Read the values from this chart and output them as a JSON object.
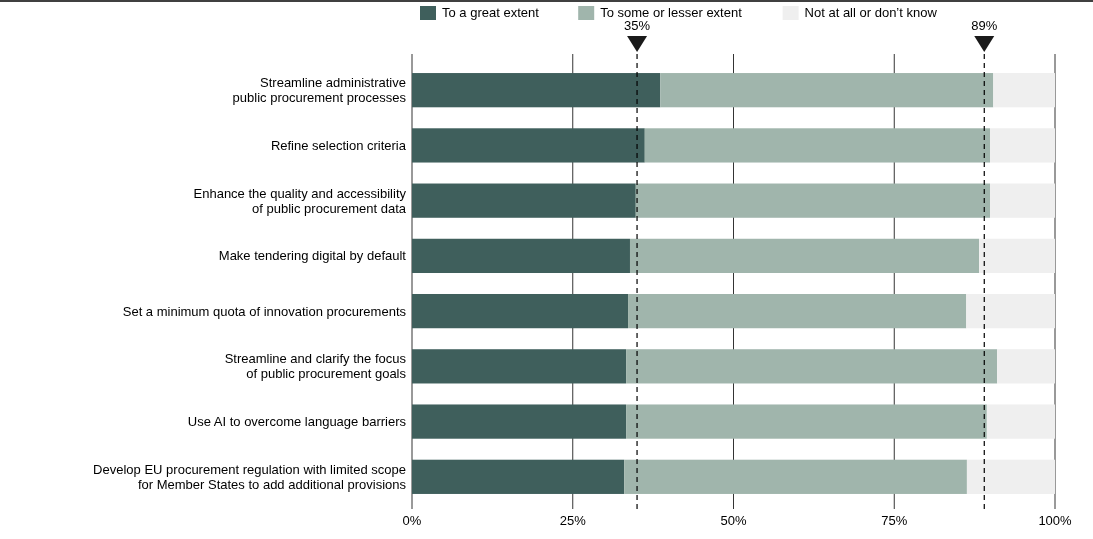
{
  "chart_data": {
    "type": "bar",
    "orientation": "horizontal",
    "stacked": true,
    "categories": [
      "Streamline administrative\npublic procurement processes",
      "Refine selection criteria",
      "Enhance the quality and accessibility\nof public procurement data",
      "Make tendering digital by default",
      "Set a minimum quota of innovation procurements",
      "Streamline and clarify the focus\nof public procurement goals",
      "Use AI to overcome language barriers",
      "Develop EU procurement regulation with limited scope\nfor Member States to add additional provisions"
    ],
    "series": [
      {
        "name": "To a great extent",
        "color": "#3f5f5c",
        "values": [
          38.6,
          36.2,
          34.8,
          33.9,
          33.6,
          33.3,
          33.3,
          33.0
        ]
      },
      {
        "name": "To some or lesser extent",
        "color": "#a0b5ac",
        "values": [
          51.8,
          53.7,
          55.1,
          54.3,
          52.6,
          57.7,
          56.1,
          53.3
        ]
      },
      {
        "name": "Not at all or don’t know",
        "color": "#efefef",
        "values": [
          9.6,
          10.1,
          10.1,
          11.8,
          13.8,
          9.0,
          10.6,
          13.7
        ]
      }
    ],
    "xlim": [
      0,
      100
    ],
    "xticks": [
      {
        "value": 0,
        "label": "0%"
      },
      {
        "value": 25,
        "label": "25%"
      },
      {
        "value": 50,
        "label": "50%"
      },
      {
        "value": 75,
        "label": "75%"
      },
      {
        "value": 100,
        "label": "100%"
      }
    ],
    "grid": "x",
    "legend": "top",
    "ref_lines": [
      {
        "axis": "x",
        "value": 35,
        "label": "35%",
        "color": "#000000",
        "line_style": "dashed"
      },
      {
        "axis": "x",
        "value": 89,
        "label": "89%",
        "color": "#000000",
        "line_style": "dashed"
      }
    ]
  }
}
